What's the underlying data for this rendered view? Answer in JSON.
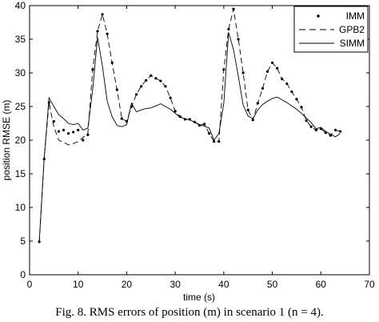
{
  "caption": "Fig. 8.   RMS errors of position (m) in scenario 1 (n = 4).",
  "chart_data": {
    "type": "line",
    "xlabel": "time (s)",
    "ylabel": "position RMSE (m)",
    "xlim": [
      0,
      70
    ],
    "ylim": [
      0,
      40
    ],
    "xticks": [
      0,
      10,
      20,
      30,
      40,
      50,
      60,
      70
    ],
    "yticks": [
      0,
      5,
      10,
      15,
      20,
      25,
      30,
      35,
      40
    ],
    "grid": false,
    "legend_position": "top-right",
    "series": [
      {
        "name": "IMM",
        "style": "dotted-markers",
        "color": "#000000",
        "x": [
          2,
          3,
          4,
          5,
          6,
          7,
          8,
          9,
          10,
          11,
          12,
          13,
          14,
          15,
          16,
          17,
          18,
          19,
          20,
          21,
          22,
          23,
          24,
          25,
          26,
          27,
          28,
          29,
          30,
          31,
          32,
          33,
          34,
          35,
          36,
          37,
          38,
          39,
          40,
          41,
          42,
          43,
          44,
          45,
          46,
          47,
          48,
          49,
          50,
          51,
          52,
          53,
          54,
          55,
          56,
          57,
          58,
          59,
          60,
          61,
          62,
          63,
          64
        ],
        "y": [
          4.9,
          17.2,
          25.6,
          22.8,
          21.3,
          21.5,
          21.0,
          21.2,
          21.5,
          20.0,
          20.8,
          30.5,
          36.2,
          38.7,
          35.8,
          31.5,
          27.5,
          23.2,
          22.8,
          25.0,
          26.8,
          28.0,
          28.9,
          29.6,
          29.2,
          28.8,
          28.0,
          26.3,
          24.3,
          23.5,
          23.1,
          23.1,
          22.7,
          22.2,
          22.4,
          21.0,
          19.8,
          19.8,
          30.5,
          36.5,
          39.5,
          35.0,
          30.0,
          24.5,
          23.0,
          25.5,
          27.7,
          30.2,
          31.5,
          30.7,
          29.1,
          28.4,
          27.2,
          26.1,
          24.9,
          22.9,
          22.0,
          21.5,
          21.7,
          21.1,
          20.7,
          21.5,
          21.3
        ]
      },
      {
        "name": "GPB2",
        "style": "dashed",
        "color": "#000000",
        "x": [
          2,
          3,
          4,
          5,
          6,
          7,
          8,
          9,
          10,
          11,
          12,
          13,
          14,
          15,
          16,
          17,
          18,
          19,
          20,
          21,
          22,
          23,
          24,
          25,
          26,
          27,
          28,
          29,
          30,
          31,
          32,
          33,
          34,
          35,
          36,
          37,
          38,
          39,
          40,
          41,
          42,
          43,
          44,
          45,
          46,
          47,
          48,
          49,
          50,
          51,
          52,
          53,
          54,
          55,
          56,
          57,
          58,
          59,
          60,
          61,
          62,
          63,
          64
        ],
        "y": [
          4.9,
          17.2,
          25.6,
          22.0,
          20.0,
          19.7,
          19.3,
          19.5,
          19.8,
          20.4,
          21.0,
          30.5,
          36.2,
          38.7,
          35.8,
          31.5,
          27.5,
          23.2,
          22.8,
          25.0,
          26.8,
          28.0,
          28.9,
          29.6,
          29.2,
          28.8,
          28.0,
          26.3,
          24.3,
          23.5,
          23.1,
          23.1,
          22.7,
          22.2,
          22.4,
          21.0,
          19.8,
          19.8,
          30.5,
          36.5,
          39.5,
          35.0,
          30.0,
          24.5,
          23.0,
          25.5,
          27.7,
          30.2,
          31.5,
          30.7,
          29.1,
          28.4,
          27.2,
          26.1,
          24.9,
          22.9,
          22.0,
          21.5,
          21.7,
          21.1,
          20.7,
          21.5,
          21.3
        ]
      },
      {
        "name": "SIMM",
        "style": "solid",
        "color": "#000000",
        "x": [
          2,
          3,
          4,
          5,
          6,
          7,
          8,
          9,
          10,
          11,
          12,
          13,
          14,
          15,
          16,
          17,
          18,
          19,
          20,
          21,
          22,
          23,
          24,
          25,
          26,
          27,
          28,
          29,
          30,
          31,
          32,
          33,
          34,
          35,
          36,
          37,
          38,
          39,
          40,
          41,
          42,
          43,
          44,
          45,
          46,
          47,
          48,
          49,
          50,
          51,
          52,
          53,
          54,
          55,
          56,
          57,
          58,
          59,
          60,
          61,
          62,
          63,
          64
        ],
        "y": [
          4.9,
          17.2,
          26.3,
          25.0,
          23.8,
          23.2,
          22.5,
          22.3,
          22.5,
          21.5,
          21.8,
          27.5,
          35.3,
          31.0,
          25.8,
          23.5,
          22.2,
          22.0,
          22.3,
          25.5,
          24.2,
          24.5,
          24.7,
          24.8,
          25.1,
          25.4,
          25.0,
          24.6,
          24.0,
          23.4,
          23.2,
          23.0,
          22.7,
          22.3,
          22.1,
          21.8,
          20.0,
          21.0,
          25.5,
          36.0,
          33.5,
          29.5,
          25.2,
          23.6,
          23.2,
          24.5,
          25.3,
          25.8,
          26.2,
          26.4,
          26.0,
          25.6,
          25.1,
          24.6,
          24.0,
          23.3,
          22.6,
          21.7,
          21.9,
          21.3,
          20.9,
          20.5,
          21.0
        ]
      }
    ]
  }
}
